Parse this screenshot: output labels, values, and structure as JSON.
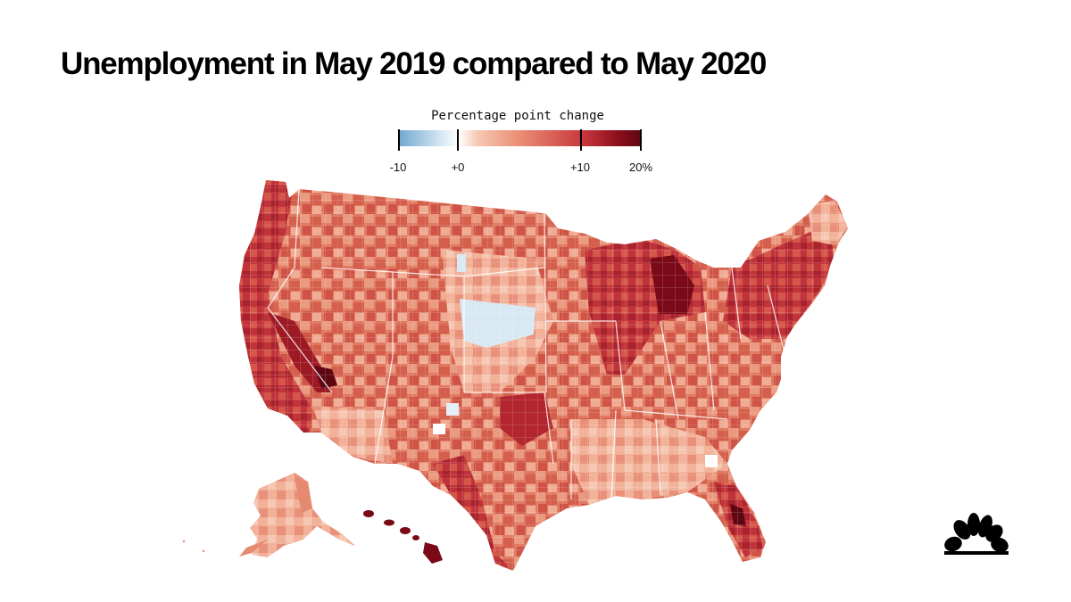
{
  "title": "Unemployment in May 2019 compared to May 2020",
  "legend": {
    "title": "Percentage point change",
    "ticks": [
      {
        "label": "-10",
        "value": -10
      },
      {
        "label": "+0",
        "value": 0
      },
      {
        "label": "+10",
        "value": 10
      },
      {
        "label": "20%",
        "value": 20
      }
    ],
    "range": [
      -10,
      20
    ],
    "colors": [
      "#6fa6cf",
      "#ffffff",
      "#eb8d74",
      "#c8383c",
      "#5e0713"
    ]
  },
  "map": {
    "region": "United States (counties, including Alaska and Hawaii)",
    "colors": {
      "base": "#e07a63",
      "light": "#f3b39c",
      "dark": "#b3262f",
      "darkest": "#7a0a17",
      "decrease": "#d6e8f4"
    }
  },
  "logo": "nbc-peacock-icon"
}
